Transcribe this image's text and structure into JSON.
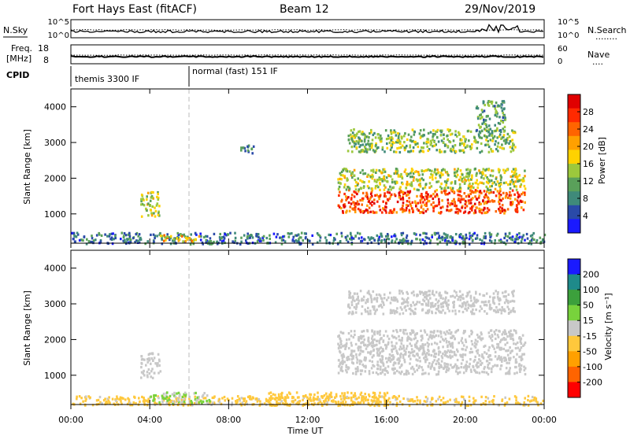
{
  "header": {
    "station": "Fort Hays East (fitACF)",
    "beam": "Beam 12",
    "date": "29/Nov/2019"
  },
  "noise_panel": {
    "left_label": "N.Sky",
    "right_label": "N.Search",
    "right_legend": "........",
    "left_ticks": [
      "10^5",
      "10^0"
    ],
    "right_ticks": [
      "10^5",
      "10^0"
    ]
  },
  "freq_panel": {
    "left_label_1": "Freq.",
    "left_label_2": "[MHz]",
    "right_label": "Nave",
    "right_legend": "....",
    "left_ticks": [
      "18",
      "8"
    ],
    "right_ticks": [
      "60",
      "0"
    ]
  },
  "cpid_panel": {
    "label": "CPID",
    "modes": [
      "themis 3300 IF",
      "normal (fast) 151 IF"
    ]
  },
  "x_axis": {
    "label": "Time UT",
    "ticks": [
      "00:00",
      "04:00",
      "08:00",
      "12:00",
      "16:00",
      "20:00",
      "00:00"
    ]
  },
  "power_panel": {
    "ylabel": "Slant Range [km]",
    "yticks": [
      "4000",
      "3000",
      "2000",
      "1000"
    ],
    "colorbar_label": "Power [dB]",
    "colorbar_ticks": [
      "28",
      "24",
      "20",
      "16",
      "12",
      "8",
      "4"
    ]
  },
  "velocity_panel": {
    "ylabel": "Slant Range [km]",
    "yticks": [
      "4000",
      "3000",
      "2000",
      "1000"
    ],
    "colorbar_label": "Velocity [m s⁻¹]",
    "colorbar_ticks": [
      "200",
      "100",
      "50",
      "15",
      "-15",
      "-50",
      "-100",
      "-200"
    ]
  },
  "colors": {
    "power_scale": [
      "#1a1aff",
      "#2a4aa8",
      "#3f8a7a",
      "#5aa05a",
      "#9cc83c",
      "#ffd200",
      "#ffa000",
      "#ff6400",
      "#ff2a00",
      "#e00000"
    ],
    "velocity_scale": [
      "#ff0000",
      "#ff6400",
      "#ffa000",
      "#ffc83c",
      "#c8c8c8",
      "#78d23c",
      "#3ca03c",
      "#1e8a8a",
      "#1a1aff"
    ]
  },
  "chart_data": [
    {
      "type": "heatmap",
      "title": "Power",
      "x_range_hours": [
        0,
        24
      ],
      "y_range_km": [
        180,
        4500
      ],
      "z_range_dB": [
        0,
        30
      ],
      "features": [
        {
          "t_start": 0.0,
          "t_end": 24.0,
          "r_min": 180,
          "r_max": 500,
          "power_dB": 7
        },
        {
          "t_start": 3.5,
          "t_end": 4.5,
          "r_min": 950,
          "r_max": 1650,
          "power_dB": 14
        },
        {
          "t_start": 4.5,
          "t_end": 6.5,
          "r_min": 250,
          "r_max": 450,
          "power_dB": 18
        },
        {
          "t_start": 8.5,
          "t_end": 9.3,
          "r_min": 2700,
          "r_max": 2950,
          "power_dB": 8
        },
        {
          "t_start": 13.5,
          "t_end": 23.0,
          "r_min": 1050,
          "r_max": 1700,
          "power_dB": 24
        },
        {
          "t_start": 13.5,
          "t_end": 23.0,
          "r_min": 1700,
          "r_max": 2300,
          "power_dB": 14
        },
        {
          "t_start": 14.0,
          "t_end": 22.5,
          "r_min": 2750,
          "r_max": 3400,
          "power_dB": 12
        },
        {
          "t_start": 20.5,
          "t_end": 22.0,
          "r_min": 3300,
          "r_max": 4200,
          "power_dB": 10
        }
      ]
    },
    {
      "type": "heatmap",
      "title": "Velocity",
      "x_range_hours": [
        0,
        24
      ],
      "y_range_km": [
        180,
        4500
      ],
      "z_range_ms": [
        -250,
        250
      ],
      "features": [
        {
          "t_start": 0.0,
          "t_end": 24.0,
          "r_min": 180,
          "r_max": 450,
          "velocity_ms": -40
        },
        {
          "t_start": 4.0,
          "t_end": 7.0,
          "r_min": 250,
          "r_max": 550,
          "velocity_ms": 30
        },
        {
          "t_start": 10.0,
          "t_end": 16.0,
          "r_min": 180,
          "r_max": 550,
          "velocity_ms": -60
        },
        {
          "t_start": 3.5,
          "t_end": 4.5,
          "r_min": 950,
          "r_max": 1650,
          "velocity_ms": 0
        },
        {
          "t_start": 13.5,
          "t_end": 23.0,
          "r_min": 1050,
          "r_max": 2300,
          "velocity_ms": 0
        },
        {
          "t_start": 14.0,
          "t_end": 22.5,
          "r_min": 2750,
          "r_max": 3400,
          "velocity_ms": 0
        }
      ]
    }
  ]
}
